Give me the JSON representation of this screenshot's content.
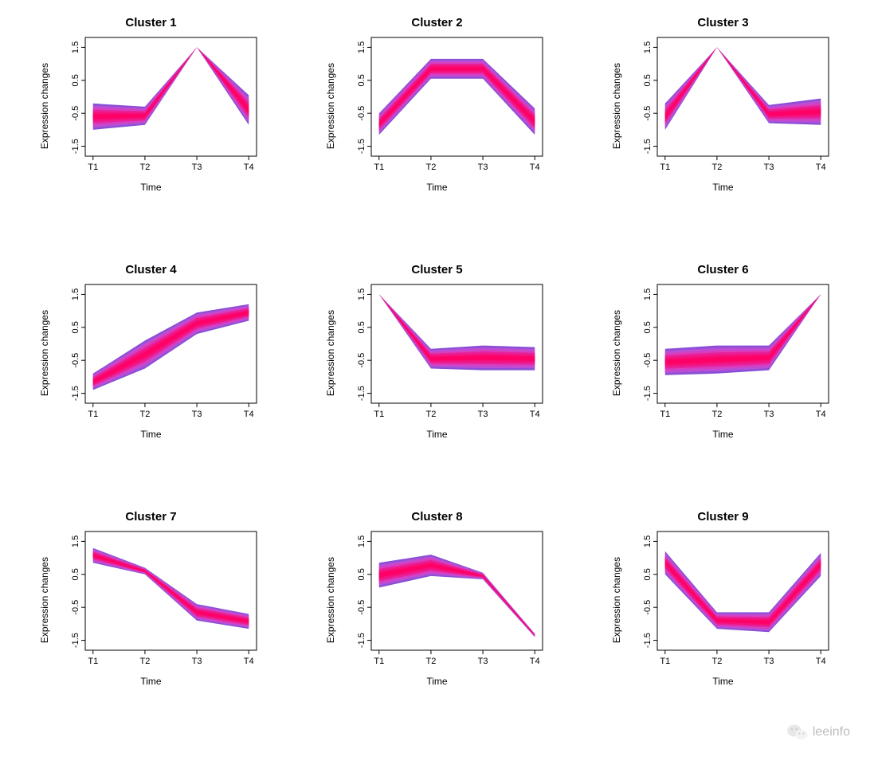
{
  "layout": {
    "rows": 3,
    "cols": 3,
    "background_color": "#ffffff",
    "panel_title_fontsize": 15,
    "axis_label_fontsize": 12,
    "tick_fontsize": 11
  },
  "axes": {
    "xlabel": "Time",
    "ylabel": "Expression changes",
    "x_ticks": [
      "T1",
      "T2",
      "T3",
      "T4"
    ],
    "x_positions": [
      1,
      2,
      3,
      4
    ],
    "y_ticks": [
      -1.5,
      -0.5,
      0.5,
      1.5
    ],
    "ylim": [
      -1.8,
      1.8
    ],
    "xlim": [
      0.85,
      4.15
    ]
  },
  "band": {
    "colors_outer_to_inner": [
      "#8a4fd6",
      "#b84fd6",
      "#d63fc0",
      "#e8209a",
      "#f4107a",
      "#ff0066"
    ],
    "line_width": 1
  },
  "watermark": {
    "text": "leeinfo",
    "color": "#888888",
    "icon": "wechat"
  },
  "panels": [
    {
      "title": "Cluster 1",
      "upper": [
        -0.2,
        -0.3,
        1.5,
        0.05
      ],
      "lower": [
        -1.0,
        -0.85,
        1.5,
        -0.85
      ]
    },
    {
      "title": "Cluster 2",
      "upper": [
        -0.5,
        1.15,
        1.15,
        -0.35
      ],
      "lower": [
        -1.15,
        0.55,
        0.55,
        -1.15
      ]
    },
    {
      "title": "Cluster 3",
      "upper": [
        -0.2,
        1.5,
        -0.25,
        -0.05
      ],
      "lower": [
        -1.0,
        1.5,
        -0.8,
        -0.85
      ]
    },
    {
      "title": "Cluster 4",
      "upper": [
        -0.9,
        0.1,
        0.95,
        1.2
      ],
      "lower": [
        -1.4,
        -0.75,
        0.3,
        0.7
      ]
    },
    {
      "title": "Cluster 5",
      "upper": [
        1.5,
        -0.15,
        -0.05,
        -0.1
      ],
      "lower": [
        1.5,
        -0.75,
        -0.8,
        -0.8
      ]
    },
    {
      "title": "Cluster 6",
      "upper": [
        -0.15,
        -0.05,
        -0.05,
        1.5
      ],
      "lower": [
        -0.95,
        -0.9,
        -0.8,
        1.5
      ]
    },
    {
      "title": "Cluster 7",
      "upper": [
        1.3,
        0.7,
        -0.4,
        -0.7
      ],
      "lower": [
        0.85,
        0.5,
        -0.9,
        -1.15
      ]
    },
    {
      "title": "Cluster 8",
      "upper": [
        0.85,
        1.1,
        0.55,
        -1.3
      ],
      "lower": [
        0.1,
        0.45,
        0.35,
        -1.4
      ]
    },
    {
      "title": "Cluster 9",
      "upper": [
        1.2,
        -0.65,
        -0.65,
        1.15
      ],
      "lower": [
        0.5,
        -1.15,
        -1.25,
        0.45
      ]
    }
  ]
}
